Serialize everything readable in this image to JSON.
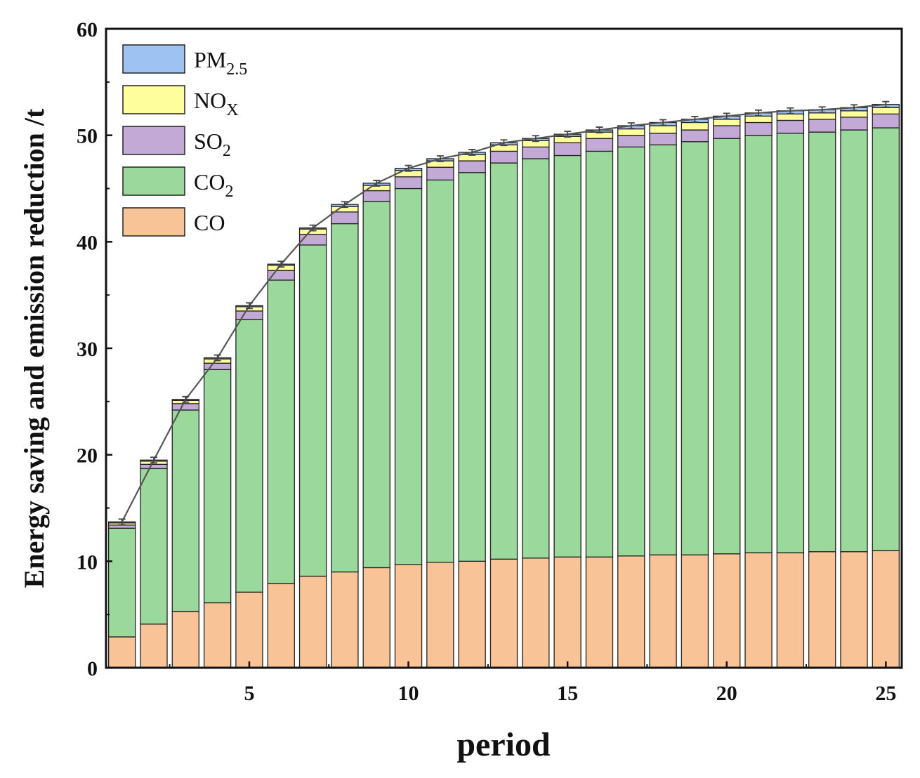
{
  "chart_data": {
    "type": "bar",
    "stacked": true,
    "xlabel": "period",
    "ylabel": "Energy saving and emission reduction /t",
    "xlim": [
      0.5,
      25.5
    ],
    "ylim": [
      0,
      60
    ],
    "xticks": [
      5,
      10,
      15,
      20,
      25
    ],
    "yticks": [
      0,
      10,
      20,
      30,
      40,
      50,
      60
    ],
    "categories": [
      1,
      2,
      3,
      4,
      5,
      6,
      7,
      8,
      9,
      10,
      11,
      12,
      13,
      14,
      15,
      16,
      17,
      18,
      19,
      20,
      21,
      22,
      23,
      24,
      25
    ],
    "legend_position": "top-left",
    "series": [
      {
        "name": "CO",
        "color": "#f8c396",
        "values": [
          2.9,
          4.1,
          5.3,
          6.1,
          7.1,
          7.9,
          8.6,
          9.0,
          9.4,
          9.7,
          9.9,
          10.0,
          10.2,
          10.3,
          10.4,
          10.4,
          10.5,
          10.6,
          10.6,
          10.7,
          10.8,
          10.8,
          10.9,
          10.9,
          11.0
        ]
      },
      {
        "name": "CO2",
        "color": "#9bd89b",
        "values": [
          10.2,
          14.6,
          18.9,
          21.9,
          25.6,
          28.5,
          31.1,
          32.7,
          34.4,
          35.3,
          35.9,
          36.5,
          37.2,
          37.5,
          37.7,
          38.1,
          38.4,
          38.5,
          38.8,
          39.0,
          39.2,
          39.4,
          39.4,
          39.6,
          39.7
        ]
      },
      {
        "name": "SO2",
        "color": "#c3a9d6",
        "values": [
          0.3,
          0.4,
          0.6,
          0.6,
          0.8,
          0.9,
          1.0,
          1.1,
          1.0,
          1.1,
          1.2,
          1.1,
          1.1,
          1.1,
          1.2,
          1.2,
          1.1,
          1.1,
          1.1,
          1.2,
          1.2,
          1.2,
          1.2,
          1.2,
          1.3
        ]
      },
      {
        "name": "NOX",
        "color": "#fffe9c",
        "values": [
          0.2,
          0.3,
          0.3,
          0.4,
          0.4,
          0.5,
          0.5,
          0.5,
          0.5,
          0.6,
          0.6,
          0.6,
          0.6,
          0.6,
          0.6,
          0.6,
          0.6,
          0.7,
          0.7,
          0.6,
          0.6,
          0.6,
          0.6,
          0.6,
          0.6
        ]
      },
      {
        "name": "PM2.5",
        "color": "#9ec2f2",
        "values": [
          0.1,
          0.1,
          0.1,
          0.1,
          0.1,
          0.1,
          0.1,
          0.2,
          0.2,
          0.2,
          0.2,
          0.2,
          0.2,
          0.2,
          0.2,
          0.2,
          0.3,
          0.3,
          0.3,
          0.3,
          0.3,
          0.3,
          0.3,
          0.3,
          0.3
        ]
      }
    ],
    "totals": [
      13.7,
      19.5,
      25.2,
      29.1,
      34.0,
      37.9,
      41.3,
      43.5,
      45.5,
      46.9,
      47.8,
      48.4,
      49.3,
      49.7,
      50.1,
      50.5,
      50.9,
      51.2,
      51.5,
      51.8,
      52.1,
      52.3,
      52.4,
      52.6,
      52.9
    ]
  },
  "legend": [
    {
      "base": "PM",
      "sub": "2.5",
      "color": "#9ec2f2"
    },
    {
      "base": "NO",
      "sub": "X",
      "color": "#fffe9c"
    },
    {
      "base": "SO",
      "sub": "2",
      "color": "#c3a9d6"
    },
    {
      "base": "CO",
      "sub": "2",
      "color": "#9bd89b"
    },
    {
      "base": "CO",
      "sub": "",
      "color": "#f8c396"
    }
  ]
}
